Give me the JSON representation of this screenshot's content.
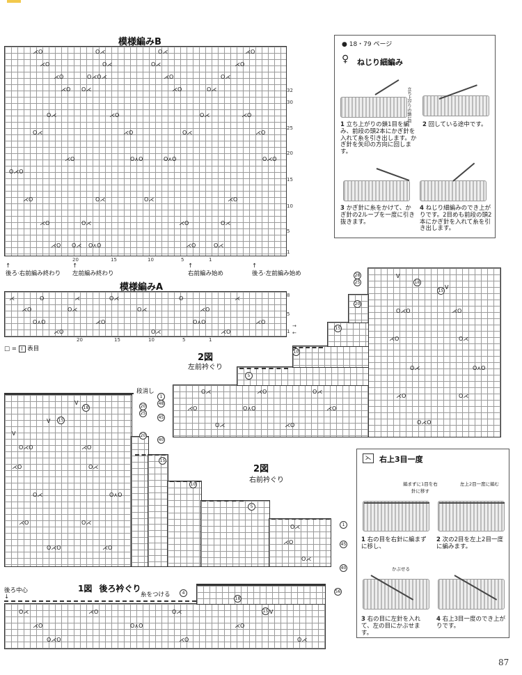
{
  "charts": {
    "pattern_b": {
      "title": "模様編みB",
      "row_numbers": [
        "32",
        "30",
        "25",
        "20",
        "15",
        "10",
        "5",
        "1"
      ],
      "col_numbers": [
        "20",
        "15",
        "10",
        "5",
        "1"
      ],
      "bottom_labels": [
        "後ろ·右前編み終わり",
        "左前編み終わり",
        "右前編み始め",
        "後ろ·左前編み始め"
      ]
    },
    "pattern_a": {
      "title": "模様編みA",
      "row_numbers": [
        "8",
        "5",
        "1"
      ],
      "col_numbers": [
        "20",
        "15",
        "10",
        "5",
        "1"
      ]
    },
    "legend": {
      "symbol": "□",
      "equals": "=",
      "boxed": "I",
      "text": "表目"
    },
    "fig2_left": {
      "title": "2図",
      "subtitle": "左前衿ぐり",
      "labels": {
        "dandeshi": "段消し"
      },
      "rows": [
        "56",
        "55",
        "50",
        "48",
        "45",
        "40"
      ],
      "steps": [
        "15",
        "10",
        "5",
        "1",
        "20"
      ]
    },
    "fig2_right": {
      "title": "2図",
      "subtitle": "右前衿ぐり",
      "labels": {},
      "rows": [
        "28",
        "25",
        "20",
        "1",
        "45",
        "40"
      ],
      "steps": [
        "18",
        "15",
        "20",
        "15",
        "10",
        "5"
      ]
    },
    "fig1": {
      "title": "1図",
      "subtitle": "後ろ衿ぐり",
      "labels": {
        "center": "後ろ中心",
        "attach": "糸をつける"
      },
      "steps": [
        "4",
        "18",
        "15",
        "56"
      ]
    }
  },
  "tips": {
    "nejiri": {
      "ref": "18・79 ページ",
      "title": "ねじり細編み",
      "callout": "立ち上がりの鎖1目",
      "steps": [
        {
          "num": "1",
          "text": "立ち上がりの鎖1目を編み、前段の頭2本にかぎ針を入れて糸を引き出します。かぎ針を矢印の方向に回します。"
        },
        {
          "num": "2",
          "text": "回している途中です。"
        },
        {
          "num": "3",
          "text": "かぎ針に糸をかけて、かぎ針の2ループを一度に引き抜きます。"
        },
        {
          "num": "4",
          "text": "ねじり細編みのでき上がりです。2目めも前段の頭2本にかぎ針を入れて糸を引き出します。"
        }
      ]
    },
    "migiue": {
      "title": "右上3目一度",
      "callouts": [
        "編まずに1目を右針に移す",
        "左上2目一度に編む",
        "かぶせる"
      ],
      "steps": [
        {
          "num": "1",
          "text": "右の目を右針に編まずに移し、"
        },
        {
          "num": "2",
          "text": "次の2目を左上2目一度に編みます。"
        },
        {
          "num": "3",
          "text": "右の目に左針を入れて、左の目にかぶせます。"
        },
        {
          "num": "4",
          "text": "右上3目一度のでき上がりです。"
        }
      ]
    }
  },
  "page": {
    "number": "87"
  }
}
